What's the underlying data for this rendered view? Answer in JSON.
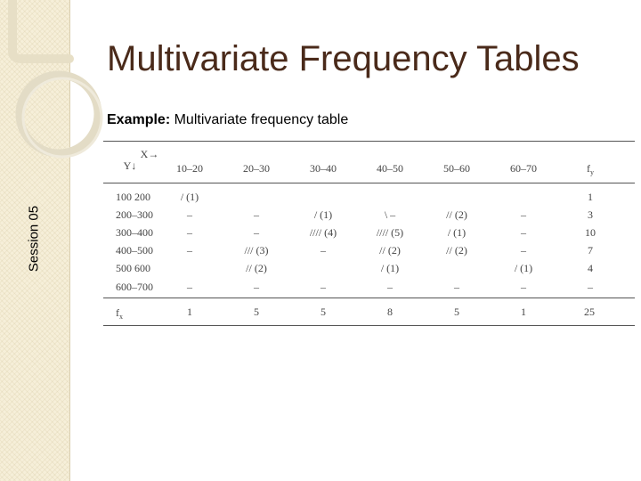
{
  "sidebar": {
    "session_label": "Session 05"
  },
  "title": "Multivariate Frequency Tables",
  "subtitle": {
    "bold": "Example:",
    "text": "Multivariate frequency table"
  },
  "table": {
    "x_label": "X→",
    "y_label": "Y↓",
    "columns": [
      "10–20",
      "20–30",
      "30–40",
      "40–50",
      "50–60",
      "60–70"
    ],
    "fy_label": "f",
    "fy_sub": "y",
    "rows": [
      {
        "label": "100 200",
        "cells": [
          "/ (1)",
          "",
          "",
          "",
          "",
          ""
        ],
        "fy": "1"
      },
      {
        "label": "200–300",
        "cells": [
          "–",
          "–",
          "/ (1)",
          "\\ –",
          "// (2)",
          "–"
        ],
        "fy": "3"
      },
      {
        "label": "300–400",
        "cells": [
          "–",
          "–",
          "//// (4)",
          "//// (5)",
          "/ (1)",
          "–"
        ],
        "fy": "10"
      },
      {
        "label": "400–500",
        "cells": [
          "–",
          "/// (3)",
          "–",
          "// (2)",
          "// (2)",
          "–"
        ],
        "fy": "7"
      },
      {
        "label": "500 600",
        "cells": [
          "",
          "// (2)",
          "",
          "/ (1)",
          "",
          "/ (1)"
        ],
        "fy": "4"
      },
      {
        "label": "600–700",
        "cells": [
          "–",
          "–",
          "–",
          "–",
          "–",
          "–"
        ],
        "fy": "–"
      }
    ],
    "fx_label": "f",
    "fx_sub": "x",
    "fx_values": [
      "1",
      "5",
      "5",
      "8",
      "5",
      "1"
    ],
    "total": "25"
  }
}
